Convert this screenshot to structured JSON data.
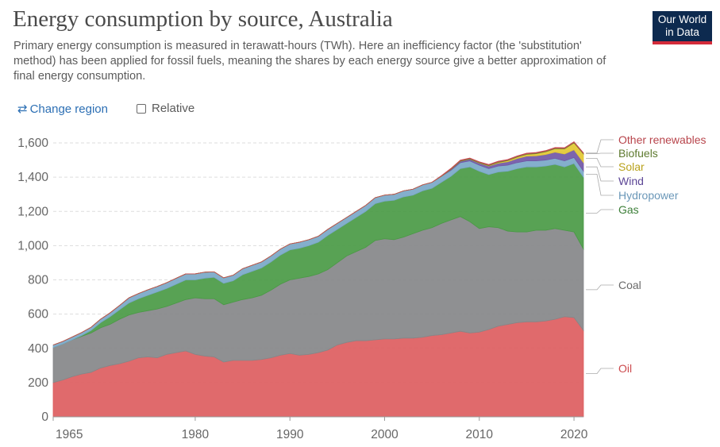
{
  "header": {
    "title": "Energy consumption by source, Australia",
    "subtitle": "Primary energy consumption is measured in terawatt-hours (TWh). Here an inefficiency factor (the 'substitution' method) has been applied for fossil fuels, meaning the shares by each energy source give a better approximation of final energy consumption."
  },
  "logo": {
    "line1": "Our World",
    "line2": "in Data"
  },
  "controls": {
    "change_region_label": "Change region",
    "relative_label": "Relative"
  },
  "chart_data": {
    "type": "area",
    "stacked": true,
    "title": "Energy consumption by source, Australia",
    "ylabel": "",
    "xlabel": "",
    "ylim": [
      0,
      1600
    ],
    "xlim": [
      1965,
      2021
    ],
    "yticks": [
      0,
      200,
      400,
      600,
      800,
      1000,
      1200,
      1400,
      1600
    ],
    "yticklabels": [
      "0",
      "200",
      "400",
      "600",
      "800",
      "1,000",
      "1,200",
      "1,400",
      "1,600"
    ],
    "xticks": [
      1965,
      1980,
      1990,
      2000,
      2010,
      2020
    ],
    "xticklabels": [
      "1965",
      "1980",
      "1990",
      "2000",
      "2010",
      "2020"
    ],
    "grid": true,
    "legend": "right, labels at series ends",
    "x": [
      1965,
      1966,
      1967,
      1968,
      1969,
      1970,
      1971,
      1972,
      1973,
      1974,
      1975,
      1976,
      1977,
      1978,
      1979,
      1980,
      1981,
      1982,
      1983,
      1984,
      1985,
      1986,
      1987,
      1988,
      1989,
      1990,
      1991,
      1992,
      1993,
      1994,
      1995,
      1996,
      1997,
      1998,
      1999,
      2000,
      2001,
      2002,
      2003,
      2004,
      2005,
      2006,
      2007,
      2008,
      2009,
      2010,
      2011,
      2012,
      2013,
      2014,
      2015,
      2016,
      2017,
      2018,
      2019,
      2020,
      2021
    ],
    "series": [
      {
        "name": "Oil",
        "color": "#dd5d5f",
        "values": [
          200,
          215,
          235,
          250,
          260,
          285,
          300,
          310,
          325,
          345,
          350,
          345,
          365,
          375,
          385,
          365,
          355,
          350,
          320,
          330,
          330,
          330,
          335,
          345,
          360,
          370,
          360,
          365,
          375,
          390,
          420,
          435,
          445,
          445,
          450,
          455,
          455,
          460,
          460,
          465,
          475,
          480,
          490,
          500,
          490,
          495,
          510,
          530,
          540,
          550,
          555,
          555,
          560,
          570,
          585,
          580,
          505
        ]
      },
      {
        "name": "Coal",
        "color": "#858789",
        "values": [
          205,
          210,
          215,
          220,
          230,
          235,
          240,
          260,
          270,
          265,
          270,
          285,
          280,
          290,
          300,
          330,
          335,
          340,
          335,
          340,
          355,
          365,
          375,
          395,
          415,
          430,
          450,
          455,
          460,
          470,
          480,
          505,
          520,
          545,
          580,
          585,
          580,
          590,
          610,
          625,
          630,
          650,
          660,
          670,
          650,
          605,
          600,
          575,
          545,
          530,
          525,
          535,
          530,
          530,
          505,
          500,
          475
        ]
      },
      {
        "name": "Gas",
        "color": "#4a9a45",
        "values": [
          0,
          0,
          0,
          5,
          15,
          30,
          45,
          55,
          70,
          80,
          90,
          100,
          105,
          110,
          115,
          105,
          120,
          125,
          125,
          125,
          145,
          155,
          160,
          165,
          170,
          175,
          175,
          180,
          185,
          200,
          195,
          190,
          200,
          210,
          215,
          220,
          230,
          235,
          225,
          230,
          230,
          240,
          255,
          280,
          320,
          335,
          305,
          325,
          350,
          370,
          380,
          370,
          375,
          375,
          370,
          400,
          420
        ]
      },
      {
        "name": "Hydropower",
        "color": "#7aa8c8",
        "values": [
          15,
          15,
          16,
          17,
          18,
          20,
          22,
          25,
          30,
          30,
          32,
          32,
          34,
          35,
          35,
          35,
          35,
          32,
          32,
          32,
          35,
          35,
          35,
          35,
          35,
          35,
          35,
          35,
          35,
          35,
          35,
          35,
          35,
          35,
          35,
          35,
          35,
          35,
          35,
          35,
          35,
          35,
          35,
          35,
          35,
          35,
          35,
          35,
          35,
          35,
          35,
          35,
          35,
          35,
          35,
          35,
          35
        ]
      },
      {
        "name": "Wind",
        "color": "#7157a6",
        "values": [
          0,
          0,
          0,
          0,
          0,
          0,
          0,
          0,
          0,
          0,
          0,
          0,
          0,
          0,
          0,
          0,
          0,
          0,
          0,
          0,
          0,
          0,
          0,
          0,
          0,
          0,
          0,
          0,
          0,
          0,
          0,
          0,
          0,
          0,
          0,
          0,
          0,
          0,
          0,
          0,
          0,
          0,
          5,
          8,
          10,
          12,
          15,
          17,
          20,
          24,
          28,
          30,
          32,
          36,
          40,
          45,
          50
        ]
      },
      {
        "name": "Solar",
        "color": "#e3c832",
        "values": [
          0,
          0,
          0,
          0,
          0,
          0,
          0,
          0,
          0,
          0,
          0,
          0,
          0,
          0,
          0,
          0,
          0,
          0,
          0,
          0,
          0,
          0,
          0,
          0,
          0,
          0,
          0,
          0,
          0,
          0,
          0,
          0,
          0,
          0,
          0,
          0,
          0,
          0,
          0,
          0,
          0,
          0,
          0,
          0,
          0,
          1,
          2,
          4,
          6,
          8,
          10,
          12,
          16,
          20,
          30,
          40,
          50
        ]
      },
      {
        "name": "Biofuels",
        "color": "#6d8a39",
        "values": [
          0,
          0,
          0,
          0,
          0,
          0,
          0,
          0,
          0,
          0,
          0,
          0,
          0,
          0,
          0,
          0,
          0,
          0,
          0,
          0,
          0,
          0,
          0,
          0,
          0,
          0,
          0,
          0,
          0,
          0,
          0,
          0,
          0,
          0,
          0,
          0,
          0,
          0,
          0,
          0,
          0,
          2,
          3,
          4,
          4,
          4,
          4,
          4,
          4,
          4,
          4,
          4,
          4,
          4,
          4,
          4,
          4
        ]
      },
      {
        "name": "Other renewables",
        "color": "#c64a52",
        "values": [
          0,
          0,
          0,
          0,
          0,
          0,
          0,
          0,
          0,
          0,
          0,
          0,
          0,
          0,
          0,
          0,
          0,
          0,
          0,
          0,
          0,
          0,
          0,
          0,
          0,
          0,
          0,
          0,
          0,
          0,
          0,
          0,
          0,
          0,
          0,
          0,
          0,
          0,
          0,
          0,
          0,
          2,
          3,
          3,
          3,
          3,
          3,
          3,
          3,
          3,
          3,
          3,
          3,
          3,
          3,
          3,
          3
        ]
      }
    ]
  }
}
